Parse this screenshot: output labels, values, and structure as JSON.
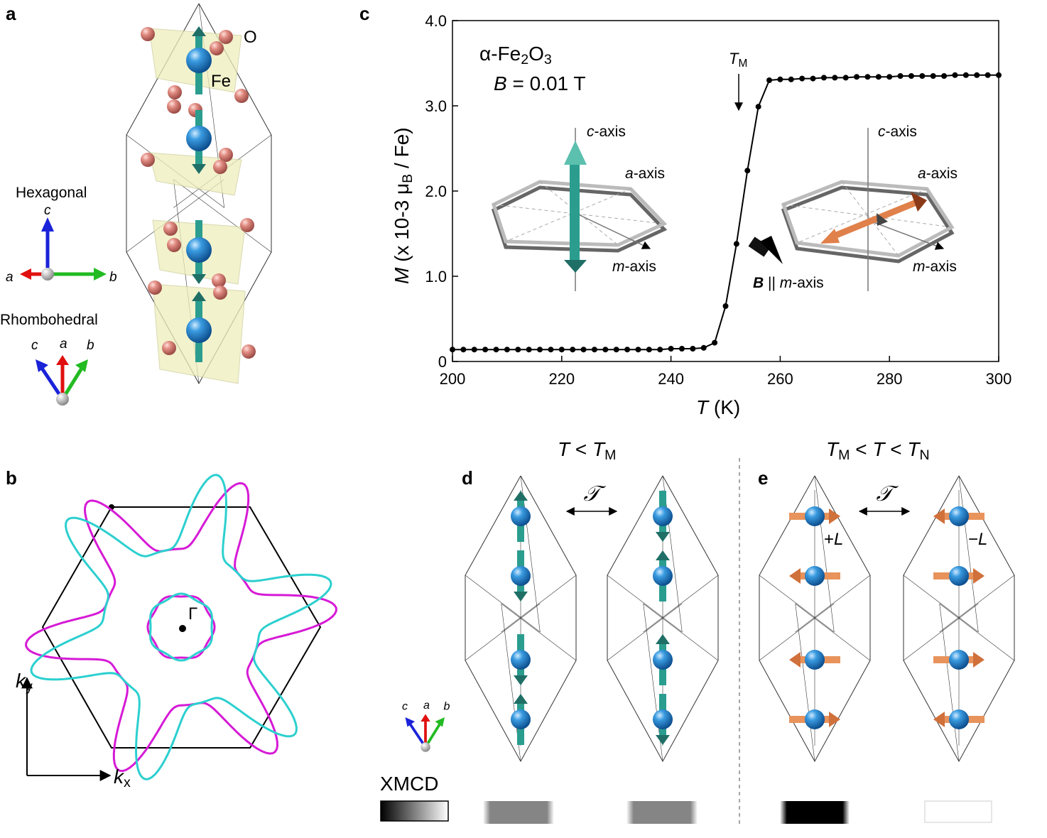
{
  "panel_labels": [
    "a",
    "b",
    "c",
    "d",
    "e"
  ],
  "panel_a": {
    "o_label": "O",
    "fe_label": "Fe",
    "hexagonal": {
      "title": "Hexagonal",
      "c": "c",
      "a": "a",
      "b": "b"
    },
    "rhombohedral": {
      "title": "Rhombohedral",
      "c": "c",
      "a": "a",
      "b": "b"
    }
  },
  "panel_b": {
    "gamma": "Γ",
    "ky": [
      "k",
      "y"
    ],
    "kx": [
      "k",
      "x"
    ]
  },
  "chart_data": {
    "type": "line",
    "x_label": [
      "T",
      " (K)"
    ],
    "y_label": [
      "M",
      " (x 10",
      "-3",
      " μ",
      "B",
      " / Fe)"
    ],
    "x": [
      200,
      202,
      204,
      206,
      208,
      210,
      212,
      214,
      216,
      218,
      220,
      222,
      224,
      226,
      228,
      230,
      232,
      234,
      236,
      238,
      240,
      242,
      244,
      246,
      248,
      250,
      252,
      254,
      256,
      258,
      260,
      262,
      264,
      266,
      268,
      270,
      272,
      274,
      276,
      278,
      280,
      282,
      284,
      286,
      288,
      290,
      292,
      294,
      296,
      298,
      300
    ],
    "series": [
      {
        "color": "#000000",
        "values": [
          0.14,
          0.14,
          0.14,
          0.14,
          0.14,
          0.14,
          0.14,
          0.14,
          0.14,
          0.14,
          0.14,
          0.14,
          0.14,
          0.14,
          0.14,
          0.14,
          0.14,
          0.14,
          0.14,
          0.14,
          0.15,
          0.15,
          0.15,
          0.16,
          0.22,
          0.65,
          1.38,
          2.24,
          2.99,
          3.3,
          3.31,
          3.31,
          3.32,
          3.32,
          3.33,
          3.33,
          3.33,
          3.34,
          3.34,
          3.34,
          3.34,
          3.35,
          3.35,
          3.35,
          3.35,
          3.35,
          3.36,
          3.36,
          3.36,
          3.36,
          3.36
        ]
      }
    ],
    "xlim": [
      200,
      300
    ],
    "xticks": [
      200,
      220,
      240,
      260,
      280,
      300
    ],
    "ylim": [
      0,
      4
    ],
    "yticks": [
      0,
      {
        "value": 1,
        "label": "1.0"
      },
      {
        "value": 2,
        "label": "2.0"
      },
      {
        "value": 3,
        "label": "3.0"
      },
      {
        "value": 4,
        "label": "4.0"
      }
    ],
    "compound": [
      "α-Fe",
      "2",
      "O",
      "3"
    ],
    "field": [
      "B",
      " = 0.01 T"
    ],
    "tm": [
      "T",
      "M"
    ],
    "inset_labels": {
      "c_axis": [
        "c",
        "-axis"
      ],
      "a_axis": [
        "a",
        "-axis"
      ],
      "m_axis": [
        "m",
        "-axis"
      ],
      "field_dir": [
        "B",
        " || ",
        "m",
        "-axis"
      ]
    }
  },
  "panel_d": {
    "heading": [
      "T",
      " < ",
      "T",
      "M"
    ],
    "symbol": "𝒯",
    "axes": {
      "c": "c",
      "a": "a",
      "b": "b"
    }
  },
  "panel_e": {
    "heading": [
      "T",
      "M",
      " < ",
      "T",
      " < ",
      "T",
      "N"
    ],
    "symbol": "𝒯",
    "plus_l": [
      "+",
      "L"
    ],
    "minus_l": [
      "−",
      "L"
    ]
  },
  "xmcd": "XMCD"
}
